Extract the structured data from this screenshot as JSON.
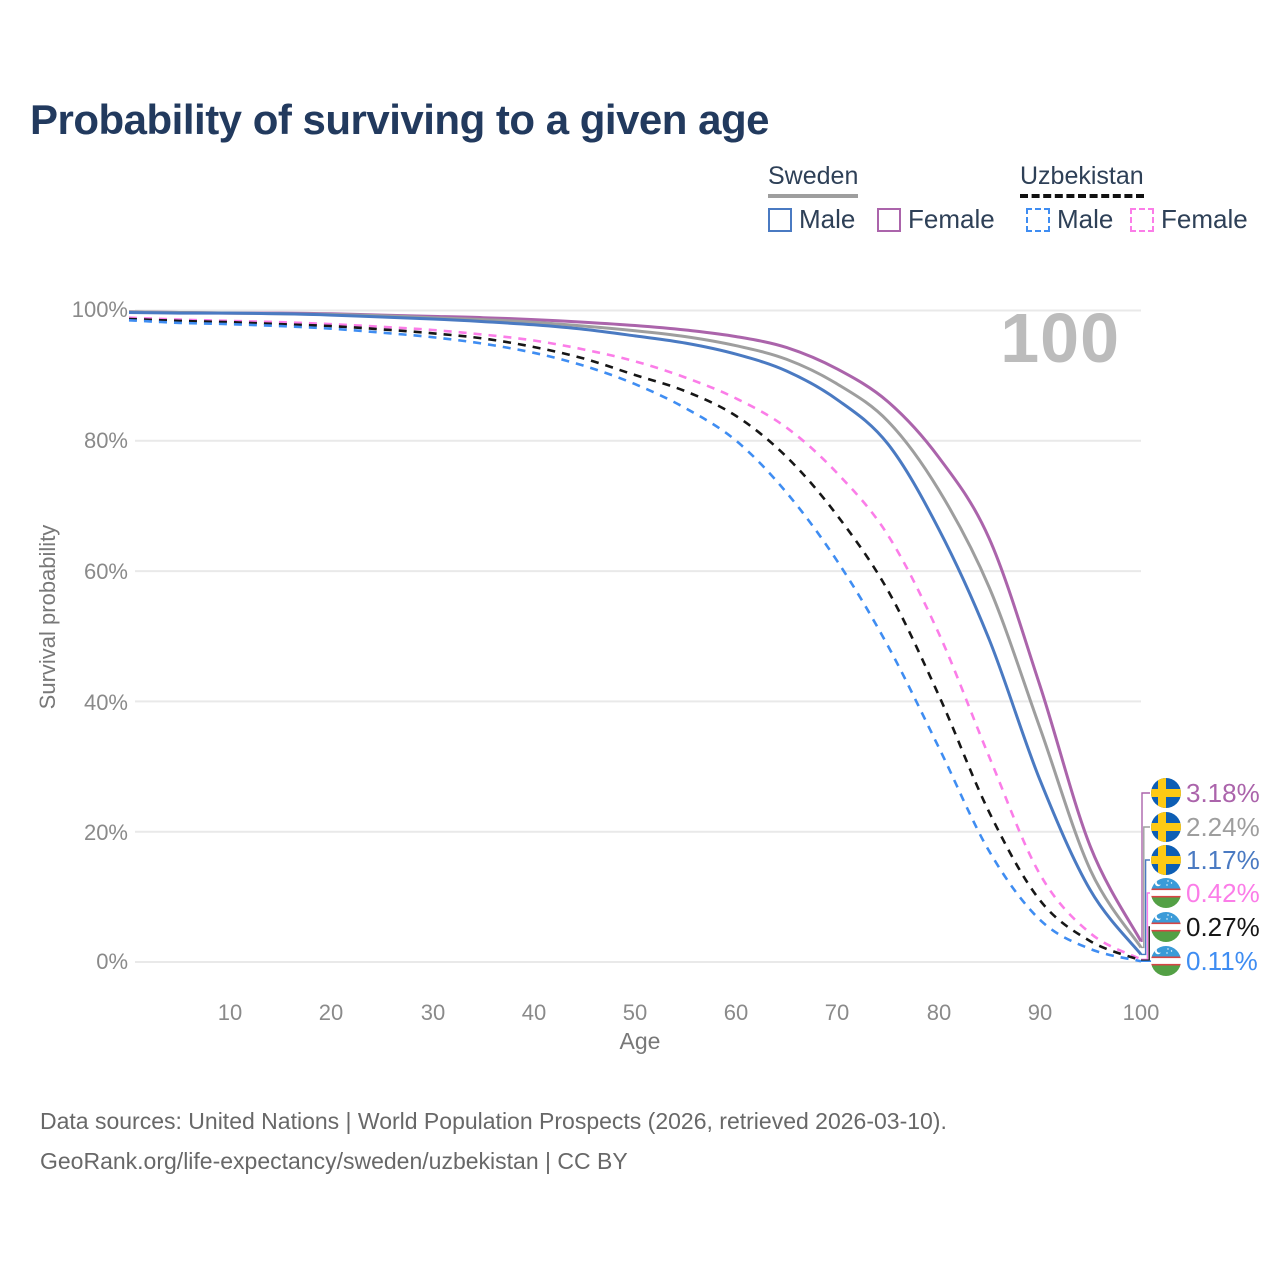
{
  "title": "Probability of surviving to a given age",
  "legend": {
    "sweden_label": "Sweden",
    "uzbekistan_label": "Uzbekistan",
    "items": [
      {
        "id": "sweden-male",
        "label": "Male",
        "color": "#4a7ac2",
        "dashed": false
      },
      {
        "id": "sweden-female",
        "label": "Female",
        "color": "#ab64ab",
        "dashed": false
      },
      {
        "id": "uzbekistan-male",
        "label": "Male",
        "color": "#3f8df2",
        "dashed": true
      },
      {
        "id": "uzbekistan-female",
        "label": "Female",
        "color": "#fb7de8",
        "dashed": true
      }
    ]
  },
  "watermark": "100",
  "axes": {
    "y_title": "Survival probability",
    "x_title": "Age",
    "y_ticks": [
      "0%",
      "20%",
      "40%",
      "60%",
      "80%",
      "100%"
    ],
    "x_ticks": [
      "10",
      "20",
      "30",
      "40",
      "50",
      "60",
      "70",
      "80",
      "90",
      "100"
    ]
  },
  "chart_data": {
    "type": "line",
    "title": "Probability of surviving to a given age",
    "xlabel": "Age",
    "ylabel": "Survival probability",
    "xlim": [
      0,
      100
    ],
    "ylim": [
      0,
      100
    ],
    "grid": "horizontal-only",
    "legend_position": "top-right",
    "x": [
      0,
      5,
      10,
      15,
      20,
      25,
      30,
      35,
      40,
      45,
      50,
      55,
      60,
      65,
      70,
      75,
      80,
      85,
      90,
      95,
      100
    ],
    "series": [
      {
        "name": "Sweden Female",
        "flag": "sweden",
        "style": "solid",
        "color": "#ab64ab",
        "end_label": "3.18%",
        "values": [
          99.8,
          99.7,
          99.6,
          99.6,
          99.5,
          99.3,
          99.1,
          98.9,
          98.6,
          98.2,
          97.7,
          97.0,
          96.0,
          94.3,
          91.0,
          86.0,
          77.5,
          65.0,
          42.5,
          17.7,
          3.18
        ]
      },
      {
        "name": "Sweden Total",
        "flag": "sweden",
        "style": "solid",
        "color": "#9e9e9e",
        "end_label": "2.24%",
        "values": [
          99.8,
          99.7,
          99.6,
          99.5,
          99.4,
          99.2,
          98.9,
          98.6,
          98.2,
          97.6,
          96.9,
          96.0,
          94.6,
          92.5,
          88.7,
          83.0,
          72.5,
          57.5,
          36.0,
          14.1,
          2.24
        ]
      },
      {
        "name": "Sweden Male",
        "flag": "sweden",
        "style": "solid",
        "color": "#4a7ac2",
        "end_label": "1.17%",
        "values": [
          99.7,
          99.6,
          99.6,
          99.5,
          99.3,
          99.0,
          98.7,
          98.3,
          97.8,
          97.1,
          96.1,
          95.0,
          93.3,
          90.7,
          86.3,
          79.5,
          66.5,
          49.5,
          28.0,
          11.0,
          1.17
        ]
      },
      {
        "name": "Uzbekistan Female",
        "flag": "uzbekistan",
        "style": "dashed",
        "color": "#fb7de8",
        "end_label": "0.42%",
        "values": [
          98.9,
          98.6,
          98.4,
          98.2,
          97.9,
          97.5,
          97.0,
          96.3,
          95.4,
          94.0,
          92.2,
          89.7,
          86.5,
          82.0,
          75.0,
          65.5,
          50.5,
          31.5,
          13.5,
          4.4,
          0.42
        ]
      },
      {
        "name": "Uzbekistan Total",
        "flag": "uzbekistan",
        "style": "dashed",
        "color": "#161616",
        "end_label": "0.27%",
        "values": [
          98.7,
          98.4,
          98.2,
          97.9,
          97.6,
          97.1,
          96.5,
          95.7,
          94.4,
          92.6,
          90.1,
          87.6,
          83.8,
          77.5,
          68.5,
          57.0,
          41.0,
          23.0,
          9.5,
          3.2,
          0.27
        ]
      },
      {
        "name": "Uzbekistan Male",
        "flag": "uzbekistan",
        "style": "dashed",
        "color": "#3f8df2",
        "end_label": "0.11%",
        "values": [
          98.5,
          98.1,
          97.9,
          97.6,
          97.2,
          96.6,
          95.9,
          94.9,
          93.5,
          91.5,
          88.7,
          85.0,
          80.0,
          72.0,
          61.5,
          48.5,
          33.0,
          17.0,
          6.5,
          2.0,
          0.11
        ]
      }
    ]
  },
  "footer": {
    "line1": "Data sources: United Nations | World Population Prospects (2026, retrieved 2026-03-10).",
    "line2": "GeoRank.org/life-expectancy/sweden/uzbekistan | CC BY"
  }
}
